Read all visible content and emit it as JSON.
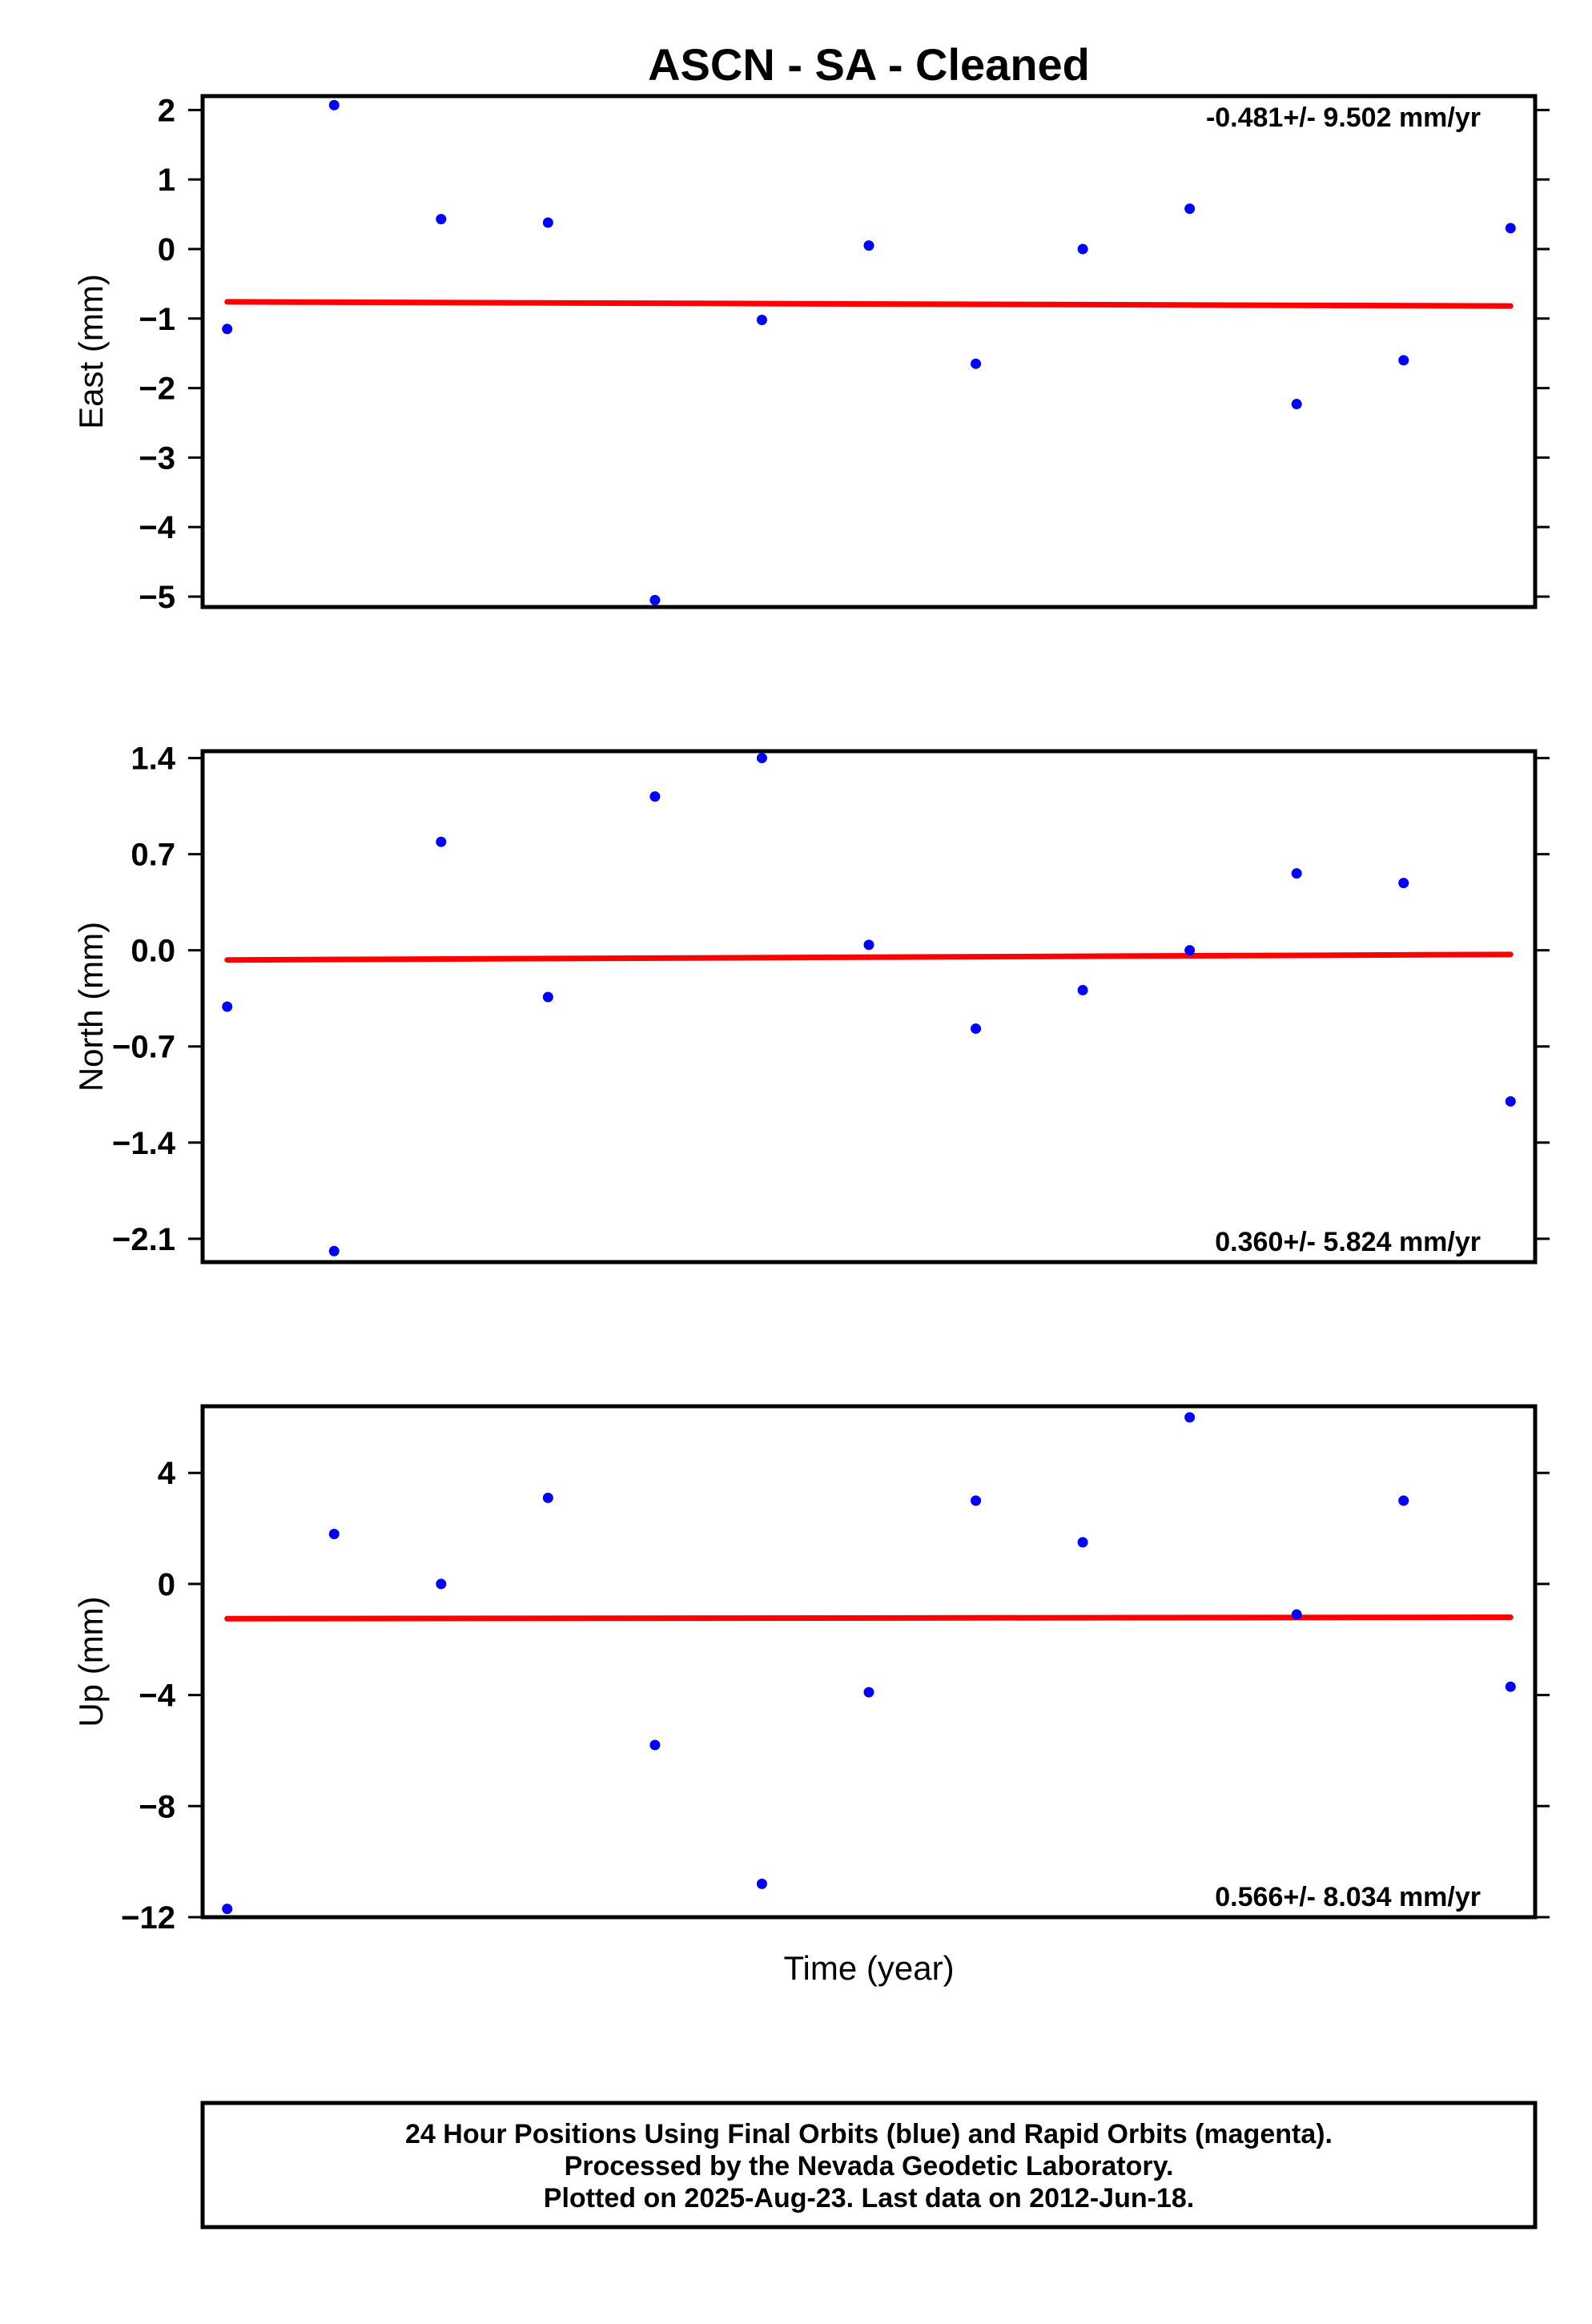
{
  "title": "ASCN  - SA - Cleaned",
  "xlabel": "Time (year)",
  "footer": {
    "lines": [
      "24 Hour Positions Using Final Orbits (blue) and Rapid Orbits (magenta).",
      "Processed by the Nevada Geodetic Laboratory.",
      "Plotted on 2025-Aug-23. Last data on 2012-Jun-18."
    ]
  },
  "colors": {
    "points": "#0000ff",
    "trend": "#ff0000",
    "axes": "#000000"
  },
  "chart_data": [
    {
      "type": "scatter",
      "ylabel": "East (mm)",
      "ylim": [
        -5.15,
        2.2
      ],
      "yticks": [
        2,
        1,
        0,
        -1,
        -2,
        -3,
        -4,
        -5
      ],
      "ytick_labels": [
        "2",
        "1",
        "0",
        "−1",
        "−2",
        "−3",
        "−4",
        "−5"
      ],
      "rate_label": "-0.481+/- 9.502 mm/yr",
      "rate_position": "top-right",
      "x": [
        1,
        2,
        3,
        4,
        5,
        6,
        7,
        8,
        9,
        10,
        11,
        12,
        13
      ],
      "y": [
        -1.15,
        2.07,
        0.43,
        0.38,
        -5.05,
        -1.02,
        0.05,
        -1.65,
        0.0,
        0.58,
        -2.23,
        -1.6,
        0.3
      ],
      "trend": [
        [
          1,
          -0.76
        ],
        [
          13,
          -0.82
        ]
      ]
    },
    {
      "type": "scatter",
      "ylabel": "North (mm)",
      "ylim": [
        -2.27,
        1.45
      ],
      "yticks": [
        1.4,
        0.7,
        0.0,
        -0.7,
        -1.4,
        -2.1
      ],
      "ytick_labels": [
        "1.4",
        "0.7",
        "0.0",
        "−0.7",
        "−1.4",
        "−2.1"
      ],
      "rate_label": "0.360+/- 5.824 mm/yr",
      "rate_position": "bottom-right",
      "x": [
        1,
        2,
        3,
        4,
        5,
        6,
        7,
        8,
        9,
        10,
        11,
        12,
        13
      ],
      "y": [
        -0.41,
        -2.19,
        0.79,
        -0.34,
        1.12,
        1.4,
        0.04,
        -0.57,
        -0.29,
        0.0,
        0.56,
        0.49,
        -1.1
      ],
      "trend": [
        [
          1,
          -0.07
        ],
        [
          13,
          -0.03
        ]
      ]
    },
    {
      "type": "scatter",
      "ylabel": "Up (mm)",
      "ylim": [
        -12.0,
        6.4
      ],
      "yticks": [
        4,
        0,
        -4,
        -8,
        -12
      ],
      "ytick_labels": [
        "4",
        "0",
        "−4",
        "−8",
        "−12"
      ],
      "rate_label": "0.566+/- 8.034 mm/yr",
      "rate_position": "bottom-right",
      "x": [
        1,
        2,
        3,
        4,
        5,
        6,
        7,
        8,
        9,
        10,
        11,
        12,
        13
      ],
      "y": [
        -11.7,
        1.8,
        0.0,
        3.1,
        -5.8,
        -10.8,
        -3.9,
        3.0,
        1.5,
        6.0,
        -1.1,
        3.0,
        -3.7
      ],
      "trend": [
        [
          1,
          -1.25
        ],
        [
          13,
          -1.2
        ]
      ]
    }
  ]
}
